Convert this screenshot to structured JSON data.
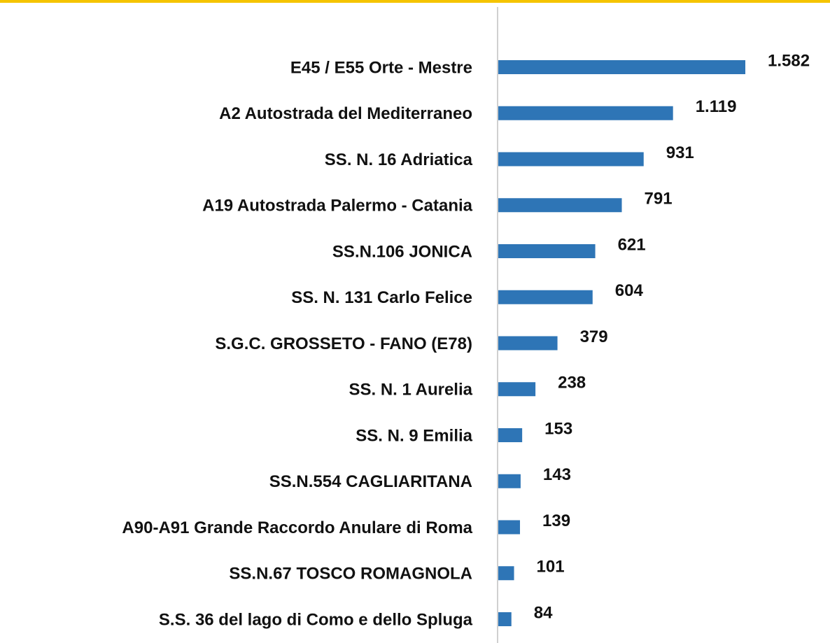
{
  "chart_data": {
    "type": "bar",
    "orientation": "horizontal",
    "color": "#2e75b6",
    "categories": [
      "E45 / E55 Orte - Mestre",
      "A2 Autostrada del Mediterraneo",
      "SS. N. 16 Adriatica",
      "A19 Autostrada Palermo - Catania",
      "SS.N.106 JONICA",
      "SS. N. 131 Carlo Felice",
      "S.G.C. GROSSETO - FANO (E78)",
      "SS. N. 1 Aurelia",
      "SS. N. 9 Emilia",
      "SS.N.554 CAGLIARITANA",
      "A90-A91 Grande Raccordo Anulare di Roma",
      "SS.N.67 TOSCO ROMAGNOLA",
      "S.S. 36 del lago di Como e dello Spluga"
    ],
    "values": [
      1582,
      1119,
      931,
      791,
      621,
      604,
      379,
      238,
      153,
      143,
      139,
      101,
      84
    ],
    "value_labels": [
      "1.582",
      "1.119",
      "931",
      "791",
      "621",
      "604",
      "379",
      "238",
      "153",
      "143",
      "139",
      "101",
      "84"
    ]
  }
}
